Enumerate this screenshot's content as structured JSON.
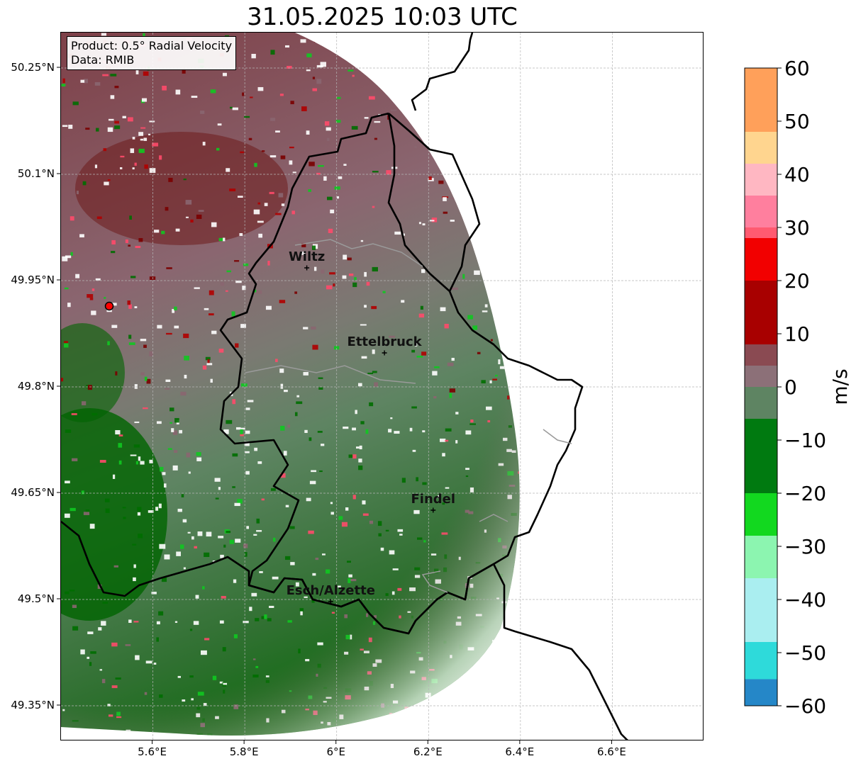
{
  "title": "31.05.2025 10:03 UTC",
  "info": {
    "product": "Product: 0.5° Radial Velocity",
    "data": "Data: RMIB"
  },
  "map": {
    "lon_range": [
      5.4,
      6.8
    ],
    "lat_range": [
      49.3,
      50.3
    ],
    "lon_ticks": [
      {
        "value": 5.6,
        "label": "5.6°E"
      },
      {
        "value": 5.8,
        "label": "5.8°E"
      },
      {
        "value": 6.0,
        "label": "6°E"
      },
      {
        "value": 6.2,
        "label": "6.2°E"
      },
      {
        "value": 6.4,
        "label": "6.4°E"
      },
      {
        "value": 6.6,
        "label": "6.6°E"
      }
    ],
    "lat_ticks": [
      {
        "value": 50.25,
        "label": "50.25°N"
      },
      {
        "value": 50.1,
        "label": "50.1°N"
      },
      {
        "value": 49.95,
        "label": "49.95°N"
      },
      {
        "value": 49.8,
        "label": "49.8°N"
      },
      {
        "value": 49.65,
        "label": "49.65°N"
      },
      {
        "value": 49.5,
        "label": "49.5°N"
      },
      {
        "value": 49.35,
        "label": "49.35°N"
      }
    ],
    "radar_site": {
      "lon": 5.505,
      "lat": 49.914
    },
    "cities": [
      {
        "name": "Wiltz",
        "lon": 5.935,
        "lat": 49.968
      },
      {
        "name": "Ettelbruck",
        "lon": 6.104,
        "lat": 49.848
      },
      {
        "name": "Findel",
        "lon": 6.21,
        "lat": 49.626
      },
      {
        "name": "Esch/Alzette",
        "lon": 5.987,
        "lat": 49.497
      }
    ]
  },
  "colorbar": {
    "label": "m/s",
    "range": [
      -60,
      60
    ],
    "ticks": [
      {
        "value": 60,
        "label": "60"
      },
      {
        "value": 50,
        "label": "50"
      },
      {
        "value": 40,
        "label": "40"
      },
      {
        "value": 30,
        "label": "30"
      },
      {
        "value": 20,
        "label": "20"
      },
      {
        "value": 10,
        "label": "10"
      },
      {
        "value": 0,
        "label": "0"
      },
      {
        "value": -10,
        "label": "−10"
      },
      {
        "value": -20,
        "label": "−20"
      },
      {
        "value": -30,
        "label": "−30"
      },
      {
        "value": -40,
        "label": "−40"
      },
      {
        "value": -50,
        "label": "−50"
      },
      {
        "value": -60,
        "label": "−60"
      }
    ],
    "colors": [
      {
        "from": 48,
        "to": 60,
        "color": "#ffa05a"
      },
      {
        "from": 42,
        "to": 48,
        "color": "#ffd58f"
      },
      {
        "from": 36,
        "to": 42,
        "color": "#ffb7c2"
      },
      {
        "from": 30,
        "to": 36,
        "color": "#ff7f9e"
      },
      {
        "from": 28,
        "to": 30,
        "color": "#ff5a70"
      },
      {
        "from": 20,
        "to": 28,
        "color": "#f20000"
      },
      {
        "from": 8,
        "to": 20,
        "color": "#a80000"
      },
      {
        "from": 4,
        "to": 8,
        "color": "#8a4a52"
      },
      {
        "from": 0,
        "to": 4,
        "color": "#8c7078"
      },
      {
        "from": -6,
        "to": 0,
        "color": "#5e8462"
      },
      {
        "from": -20,
        "to": -6,
        "color": "#007a10"
      },
      {
        "from": -28,
        "to": -20,
        "color": "#12d81f"
      },
      {
        "from": -36,
        "to": -28,
        "color": "#8cf5b0"
      },
      {
        "from": -48,
        "to": -36,
        "color": "#aaeef0"
      },
      {
        "from": -55,
        "to": -48,
        "color": "#2edada"
      },
      {
        "from": -60,
        "to": -55,
        "color": "#2587c8"
      }
    ]
  }
}
